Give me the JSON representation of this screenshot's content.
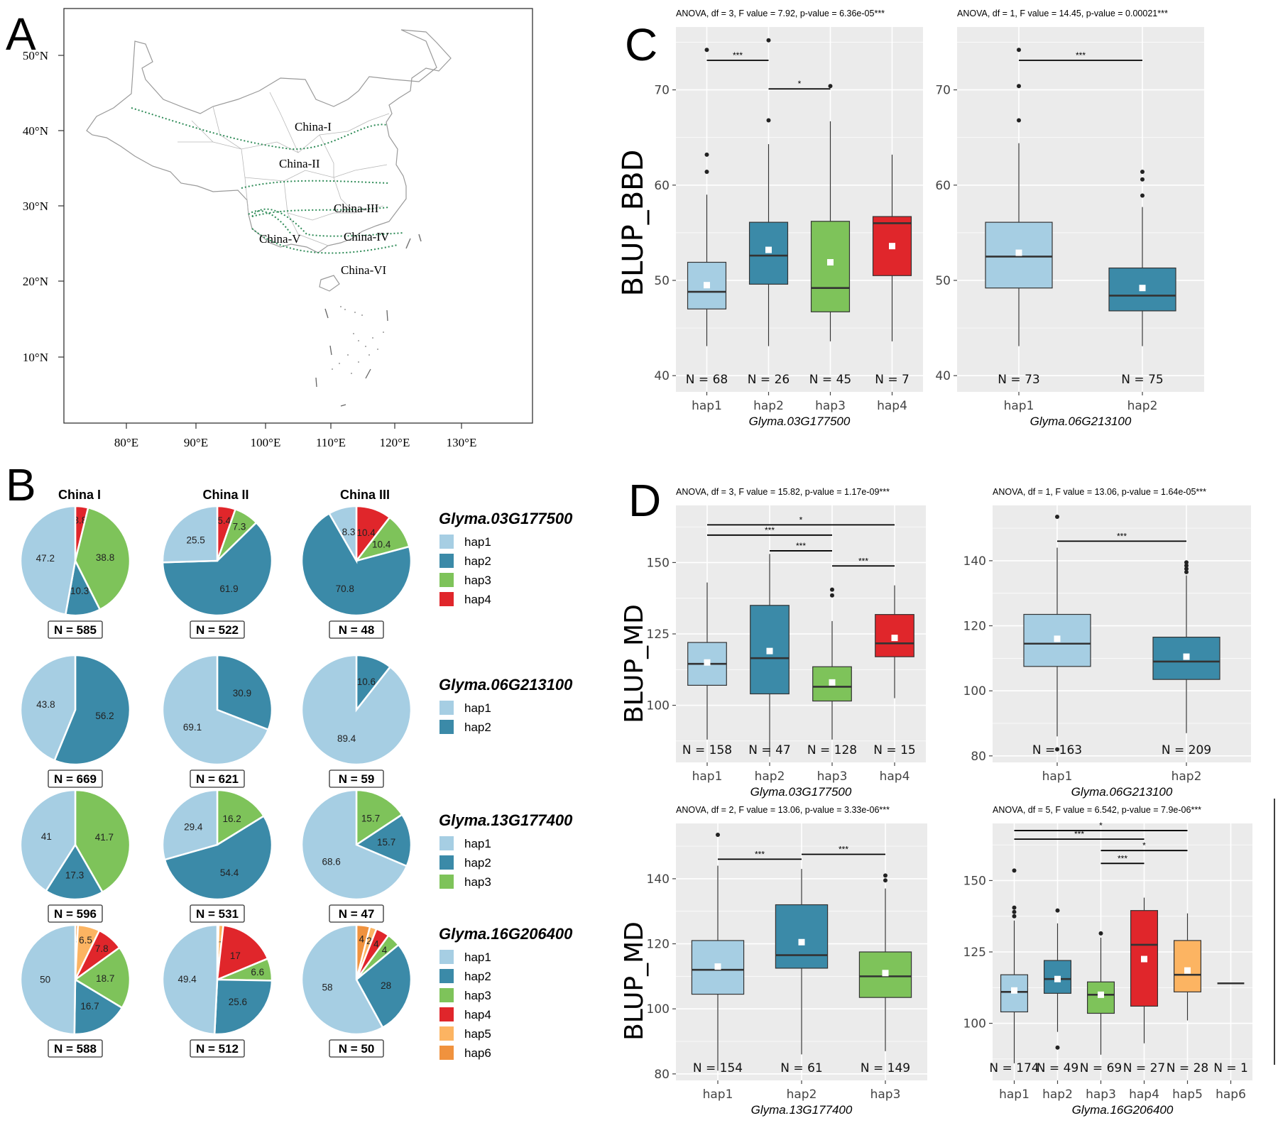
{
  "panels": {
    "A": {
      "letter": "A"
    },
    "B": {
      "letter": "B"
    },
    "C": {
      "letter": "C"
    },
    "D": {
      "letter": "D"
    }
  },
  "palette": {
    "hap1": "#a6cee3",
    "hap2": "#3b8aa8",
    "hap3": "#7ec35a",
    "hap4": "#e0262b",
    "hap5": "#fcb462",
    "hap6": "#f0923e"
  },
  "map": {
    "lat_labels": [
      "50°N",
      "40°N",
      "30°N",
      "20°N",
      "10°N"
    ],
    "lon_labels": [
      "80°E",
      "90°E",
      "100°E",
      "110°E",
      "120°E",
      "130°E"
    ],
    "regions": [
      "China-I",
      "China-II",
      "China-III",
      "China-IV",
      "China-V",
      "China-VI"
    ]
  },
  "chart_data": [
    {
      "type": "pie",
      "panel": "B",
      "columns": [
        "China I",
        "China II",
        "China III"
      ],
      "genes": [
        {
          "name": "Glyma.03G177500",
          "legend": [
            "hap1",
            "hap2",
            "hap3",
            "hap4"
          ],
          "pies": [
            {
              "n_label": "N = 585",
              "slices": [
                {
                  "hap": "hap4",
                  "value": 3.8,
                  "label": "3.8"
                },
                {
                  "hap": "hap3",
                  "value": 38.8,
                  "label": "38.8"
                },
                {
                  "hap": "hap2",
                  "value": 10.3,
                  "label": "10.3"
                },
                {
                  "hap": "hap1",
                  "value": 47.2,
                  "label": "47.2"
                }
              ]
            },
            {
              "n_label": "N = 522",
              "slices": [
                {
                  "hap": "hap4",
                  "value": 5.4,
                  "label": "5.4"
                },
                {
                  "hap": "hap3",
                  "value": 7.3,
                  "label": "7.3"
                },
                {
                  "hap": "hap2",
                  "value": 61.9,
                  "label": "61.9"
                },
                {
                  "hap": "hap1",
                  "value": 25.5,
                  "label": "25.5"
                }
              ]
            },
            {
              "n_label": "N = 48",
              "slices": [
                {
                  "hap": "hap4",
                  "value": 10.4,
                  "label": "10.4"
                },
                {
                  "hap": "hap3",
                  "value": 10.4,
                  "label": "10.4"
                },
                {
                  "hap": "hap2",
                  "value": 70.8,
                  "label": "70.8"
                },
                {
                  "hap": "hap1",
                  "value": 8.3,
                  "label": "8.3"
                }
              ]
            }
          ]
        },
        {
          "name": "Glyma.06G213100",
          "legend": [
            "hap1",
            "hap2"
          ],
          "pies": [
            {
              "n_label": "N = 669",
              "slices": [
                {
                  "hap": "hap2",
                  "value": 56.2,
                  "label": "56.2"
                },
                {
                  "hap": "hap1",
                  "value": 43.8,
                  "label": "43.8"
                }
              ]
            },
            {
              "n_label": "N = 621",
              "slices": [
                {
                  "hap": "hap2",
                  "value": 30.9,
                  "label": "30.9"
                },
                {
                  "hap": "hap1",
                  "value": 69.1,
                  "label": "69.1"
                }
              ]
            },
            {
              "n_label": "N = 59",
              "slices": [
                {
                  "hap": "hap2",
                  "value": 10.6,
                  "label": "10.6"
                },
                {
                  "hap": "hap1",
                  "value": 89.4,
                  "label": "89.4"
                }
              ]
            }
          ]
        },
        {
          "name": "Glyma.13G177400",
          "legend": [
            "hap1",
            "hap2",
            "hap3"
          ],
          "pies": [
            {
              "n_label": "N = 596",
              "slices": [
                {
                  "hap": "hap3",
                  "value": 41.7,
                  "label": "41.7"
                },
                {
                  "hap": "hap2",
                  "value": 17.3,
                  "label": "17.3"
                },
                {
                  "hap": "hap1",
                  "value": 41,
                  "label": "41"
                }
              ]
            },
            {
              "n_label": "N = 531",
              "slices": [
                {
                  "hap": "hap3",
                  "value": 16.2,
                  "label": "16.2"
                },
                {
                  "hap": "hap2",
                  "value": 54.4,
                  "label": "54.4"
                },
                {
                  "hap": "hap1",
                  "value": 29.4,
                  "label": "29.4"
                }
              ]
            },
            {
              "n_label": "N = 47",
              "slices": [
                {
                  "hap": "hap3",
                  "value": 15.7,
                  "label": "15.7"
                },
                {
                  "hap": "hap2",
                  "value": 15.7,
                  "label": "15.7"
                },
                {
                  "hap": "hap1",
                  "value": 68.6,
                  "label": "68.6"
                }
              ]
            }
          ]
        },
        {
          "name": "Glyma.16G206400",
          "legend": [
            "hap1",
            "hap2",
            "hap3",
            "hap4",
            "hap5",
            "hap6"
          ],
          "pies": [
            {
              "n_label": "N = 588",
              "slices": [
                {
                  "hap": "hap6",
                  "value": 0.8,
                  "label": "0.8"
                },
                {
                  "hap": "hap5",
                  "value": 6.5,
                  "label": "6.5"
                },
                {
                  "hap": "hap4",
                  "value": 7.8,
                  "label": "7.8"
                },
                {
                  "hap": "hap3",
                  "value": 18.7,
                  "label": "18.7"
                },
                {
                  "hap": "hap2",
                  "value": 16.7,
                  "label": "16.7"
                },
                {
                  "hap": "hap1",
                  "value": 50,
                  "label": "50"
                }
              ]
            },
            {
              "n_label": "N = 512",
              "slices": [
                {
                  "hap": "hap6",
                  "value": 0.4,
                  "label": ""
                },
                {
                  "hap": "hap5",
                  "value": 1.4,
                  "label": "1.4"
                },
                {
                  "hap": "hap4",
                  "value": 17,
                  "label": "17"
                },
                {
                  "hap": "hap3",
                  "value": 6.6,
                  "label": "6.6"
                },
                {
                  "hap": "hap2",
                  "value": 25.6,
                  "label": "25.6"
                },
                {
                  "hap": "hap1",
                  "value": 49.4,
                  "label": "49.4"
                }
              ]
            },
            {
              "n_label": "N = 50",
              "slices": [
                {
                  "hap": "hap6",
                  "value": 4,
                  "label": "4"
                },
                {
                  "hap": "hap5",
                  "value": 2,
                  "label": "2"
                },
                {
                  "hap": "hap4",
                  "value": 4,
                  "label": "4"
                },
                {
                  "hap": "hap3",
                  "value": 4,
                  "label": "4"
                },
                {
                  "hap": "hap2",
                  "value": 28,
                  "label": "28"
                },
                {
                  "hap": "hap1",
                  "value": 58,
                  "label": "58"
                }
              ]
            }
          ]
        }
      ]
    },
    {
      "type": "box",
      "panel": "C",
      "title": "ANOVA, df = 3, F value = 7.92, p-value = 6.36e-05***",
      "ylabel": "BLUP_BBD",
      "xlabel": "Glyma.03G177500",
      "ylim": [
        38.3,
        76.6
      ],
      "yticks": [
        40,
        50,
        60,
        70
      ],
      "categories": [
        "hap1",
        "hap2",
        "hap3",
        "hap4"
      ],
      "n_labels": [
        "N = 68",
        "N = 26",
        "N = 45",
        "N = 7"
      ],
      "boxes": [
        {
          "hap": "hap1",
          "q1": 47.0,
          "median": 48.8,
          "q3": 51.9,
          "low": 43.1,
          "high": 59.0,
          "mean": 49.5,
          "outliers": [
            61.4,
            63.2,
            74.2
          ]
        },
        {
          "hap": "hap2",
          "q1": 49.6,
          "median": 52.6,
          "q3": 56.1,
          "low": 43.1,
          "high": 64.3,
          "mean": 53.2,
          "outliers": [
            66.8,
            75.2
          ]
        },
        {
          "hap": "hap3",
          "q1": 46.7,
          "median": 49.2,
          "q3": 56.2,
          "low": 43.6,
          "high": 66.7,
          "mean": 51.9,
          "outliers": [
            70.4
          ]
        },
        {
          "hap": "hap4",
          "q1": 50.5,
          "median": 56.0,
          "q3": 56.7,
          "low": 43.6,
          "high": 63.2,
          "mean": 53.6,
          "outliers": []
        }
      ],
      "brackets": [
        {
          "from": 0,
          "to": 1,
          "y": 73.1,
          "label": "***"
        },
        {
          "from": 1,
          "to": 2,
          "y": 70.1,
          "label": "*"
        }
      ]
    },
    {
      "type": "box",
      "panel": "C",
      "title": "ANOVA, df = 1, F value = 14.45, p-value = 0.00021***",
      "ylabel": "",
      "xlabel": "Glyma.06G213100",
      "ylim": [
        38.3,
        76.6
      ],
      "yticks": [
        40,
        50,
        60,
        70
      ],
      "categories": [
        "hap1",
        "hap2"
      ],
      "n_labels": [
        "N = 73",
        "N = 75"
      ],
      "boxes": [
        {
          "hap": "hap1",
          "q1": 49.2,
          "median": 52.5,
          "q3": 56.1,
          "low": 43.1,
          "high": 64.4,
          "mean": 52.9,
          "outliers": [
            66.8,
            70.4,
            74.2
          ]
        },
        {
          "hap": "hap2",
          "q1": 46.8,
          "median": 48.4,
          "q3": 51.3,
          "low": 43.1,
          "high": 57.7,
          "mean": 49.2,
          "outliers": [
            58.9,
            60.6,
            61.4
          ]
        }
      ],
      "brackets": [
        {
          "from": 0,
          "to": 1,
          "y": 73.1,
          "label": "***"
        }
      ]
    },
    {
      "type": "box",
      "panel": "D",
      "title": "ANOVA, df = 3, F value = 15.82, p-value = 1.17e-09***",
      "ylabel": "BLUP_MD",
      "xlabel": "Glyma.03G177500",
      "ylim": [
        80,
        170
      ],
      "yticks": [
        100,
        125,
        150
      ],
      "categories": [
        "hap1",
        "hap2",
        "hap3",
        "hap4"
      ],
      "n_labels": [
        "N = 158",
        "N = 47",
        "N = 128",
        "N = 15"
      ],
      "boxes": [
        {
          "hap": "hap1",
          "q1": 107,
          "median": 114.5,
          "q3": 122,
          "low": 88,
          "high": 143,
          "mean": 115,
          "outliers": []
        },
        {
          "hap": "hap2",
          "q1": 104,
          "median": 116.5,
          "q3": 135,
          "low": 82,
          "high": 153,
          "mean": 119,
          "outliers": []
        },
        {
          "hap": "hap3",
          "q1": 101.5,
          "median": 106.5,
          "q3": 113.5,
          "low": 88,
          "high": 129.5,
          "mean": 108,
          "outliers": [
            138.5,
            140.5
          ]
        },
        {
          "hap": "hap4",
          "q1": 117,
          "median": 121.7,
          "q3": 131.8,
          "low": 102.5,
          "high": 142,
          "mean": 123.6,
          "outliers": []
        }
      ],
      "brackets": [
        {
          "from": 0,
          "to": 3,
          "y": 163.2,
          "label": "*"
        },
        {
          "from": 0,
          "to": 2,
          "y": 159.6,
          "label": "***"
        },
        {
          "from": 1,
          "to": 2,
          "y": 154.1,
          "label": "***"
        },
        {
          "from": 2,
          "to": 3,
          "y": 148.8,
          "label": "***"
        }
      ]
    },
    {
      "type": "box",
      "panel": "D",
      "title": "ANOVA, df = 1, F value = 13.06, p-value = 1.64e-05***",
      "ylabel": "",
      "xlabel": "Glyma.06G213100",
      "ylim": [
        78,
        157
      ],
      "yticks": [
        80,
        100,
        120,
        140
      ],
      "categories": [
        "hap1",
        "hap2"
      ],
      "n_labels": [
        "N = 163",
        "N = 209"
      ],
      "boxes": [
        {
          "hap": "hap1",
          "q1": 107.5,
          "median": 114.5,
          "q3": 123.5,
          "low": 86,
          "high": 144,
          "mean": 116,
          "outliers": [
            82,
            153.5
          ]
        },
        {
          "hap": "hap2",
          "q1": 103.5,
          "median": 109,
          "q3": 116.5,
          "low": 87,
          "high": 135.5,
          "mean": 110.5,
          "outliers": [
            136.5,
            137.5,
            138.5,
            139.5
          ]
        }
      ],
      "brackets": [
        {
          "from": 0,
          "to": 1,
          "y": 146,
          "label": "***"
        }
      ]
    },
    {
      "type": "box",
      "panel": "D",
      "title": "ANOVA, df = 2, F value = 13.06, p-value = 3.33e-06***",
      "ylabel": "BLUP_MD",
      "xlabel": "Glyma.13G177400",
      "ylim": [
        78,
        157
      ],
      "yticks": [
        80,
        100,
        120,
        140
      ],
      "categories": [
        "hap1",
        "hap2",
        "hap3"
      ],
      "n_labels": [
        "N = 154",
        "N = 61",
        "N = 149"
      ],
      "boxes": [
        {
          "hap": "hap1",
          "q1": 104.5,
          "median": 112,
          "q3": 121,
          "low": 81,
          "high": 144,
          "mean": 113,
          "outliers": [
            153.5
          ]
        },
        {
          "hap": "hap2",
          "q1": 112.5,
          "median": 116.5,
          "q3": 132,
          "low": 86,
          "high": 143,
          "mean": 120.5,
          "outliers": []
        },
        {
          "hap": "hap3",
          "q1": 103.5,
          "median": 110,
          "q3": 117.5,
          "low": 87,
          "high": 137,
          "mean": 111,
          "outliers": [
            139.5,
            141
          ]
        }
      ],
      "brackets": [
        {
          "from": 0,
          "to": 1,
          "y": 146,
          "label": "***"
        },
        {
          "from": 1,
          "to": 2,
          "y": 147.5,
          "label": "***"
        }
      ]
    },
    {
      "type": "box",
      "panel": "D",
      "title": "ANOVA, df = 5, F value = 6.542, p-value = 7.9e-06***",
      "ylabel": "",
      "xlabel": "Glyma.16G206400",
      "ylim": [
        80,
        170
      ],
      "yticks": [
        100,
        125,
        150
      ],
      "categories": [
        "hap1",
        "hap2",
        "hap3",
        "hap4",
        "hap5",
        "hap6"
      ],
      "n_labels": [
        "N = 174",
        "N = 49",
        "N = 69",
        "N = 27",
        "N = 28",
        "N = 1"
      ],
      "boxes": [
        {
          "hap": "hap1",
          "q1": 104,
          "median": 111,
          "q3": 117,
          "low": 86,
          "high": 136,
          "mean": 111.5,
          "outliers": [
            137.5,
            139,
            140.5,
            153.5
          ]
        },
        {
          "hap": "hap2",
          "q1": 110.5,
          "median": 115.5,
          "q3": 122,
          "low": 97,
          "high": 135,
          "mean": 115.5,
          "outliers": [
            91.5,
            139.5
          ]
        },
        {
          "hap": "hap3",
          "q1": 103.5,
          "median": 110,
          "q3": 114.5,
          "low": 89,
          "high": 130,
          "mean": 110,
          "outliers": [
            131.5
          ]
        },
        {
          "hap": "hap4",
          "q1": 106,
          "median": 127.5,
          "q3": 139.5,
          "low": 93,
          "high": 144,
          "mean": 122.5,
          "outliers": []
        },
        {
          "hap": "hap5",
          "q1": 111,
          "median": 117,
          "q3": 129,
          "low": 101,
          "high": 138.5,
          "mean": 118.5,
          "outliers": []
        },
        {
          "hap": "hap6",
          "q1": 114,
          "median": 114,
          "q3": 114,
          "low": 114,
          "high": 114,
          "mean": 114,
          "outliers": []
        }
      ],
      "brackets": [
        {
          "from": 0,
          "to": 4,
          "y": 167.5,
          "label": "*"
        },
        {
          "from": 0,
          "to": 3,
          "y": 164.5,
          "label": "***"
        },
        {
          "from": 2,
          "to": 4,
          "y": 160.5,
          "label": "*"
        },
        {
          "from": 2,
          "to": 3,
          "y": 156,
          "label": "***"
        }
      ]
    }
  ]
}
